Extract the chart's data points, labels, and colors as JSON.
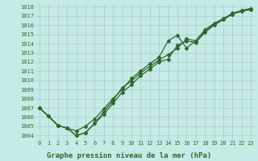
{
  "x_ticks": [
    0,
    1,
    2,
    3,
    4,
    5,
    6,
    7,
    8,
    9,
    10,
    11,
    12,
    13,
    14,
    15,
    16,
    17,
    18,
    19,
    20,
    21,
    22,
    23
  ],
  "line1": {
    "x": [
      0,
      1,
      2,
      3,
      4,
      5,
      6,
      7,
      8,
      9,
      10,
      11,
      12,
      13,
      14,
      15,
      16,
      17,
      18,
      19,
      20,
      21,
      22,
      23
    ],
    "y": [
      1007.0,
      1006.1,
      1005.1,
      1004.8,
      1004.0,
      1004.3,
      1005.3,
      1006.3,
      1007.5,
      1008.7,
      1009.5,
      1010.5,
      1011.2,
      1012.0,
      1012.3,
      1013.8,
      1014.3,
      1014.1,
      1015.2,
      1016.0,
      1016.6,
      1017.2,
      1017.5,
      1017.7
    ]
  },
  "line2": {
    "x": [
      0,
      1,
      2,
      3,
      4,
      5,
      6,
      7,
      8,
      9,
      10,
      11,
      12,
      13,
      14,
      15,
      16,
      17,
      18,
      19,
      20,
      21,
      22,
      23
    ],
    "y": [
      1007.0,
      1006.1,
      1005.1,
      1004.8,
      1004.5,
      1005.0,
      1005.8,
      1006.9,
      1008.0,
      1009.0,
      1010.2,
      1011.0,
      1011.8,
      1012.5,
      1014.3,
      1014.9,
      1013.5,
      1014.3,
      1015.5,
      1016.2,
      1016.7,
      1017.3,
      1017.6,
      1017.8
    ]
  },
  "line3": {
    "x": [
      0,
      2,
      3,
      4,
      5,
      6,
      7,
      8,
      9,
      10,
      11,
      12,
      13,
      14,
      15,
      16,
      17,
      18,
      19,
      20,
      21,
      22,
      23
    ],
    "y": [
      1007.0,
      1005.1,
      1004.8,
      1004.0,
      1004.3,
      1005.3,
      1006.6,
      1007.8,
      1009.2,
      1009.9,
      1010.8,
      1011.5,
      1012.2,
      1012.8,
      1013.5,
      1014.5,
      1014.3,
      1015.3,
      1016.1,
      1016.7,
      1017.2,
      1017.6,
      1017.8
    ]
  },
  "line_color": "#2d6a2d",
  "bg_color": "#c6eae6",
  "grid_color": "#aacccc",
  "text_color": "#2d6a2d",
  "ylim": [
    1003.5,
    1018.3
  ],
  "yticks": [
    1004,
    1005,
    1006,
    1007,
    1008,
    1009,
    1010,
    1011,
    1012,
    1013,
    1014,
    1015,
    1016,
    1017,
    1018
  ],
  "xlabel": "Graphe pression niveau de la mer (hPa)",
  "tick_fontsize": 5,
  "xlabel_fontsize": 6.5
}
